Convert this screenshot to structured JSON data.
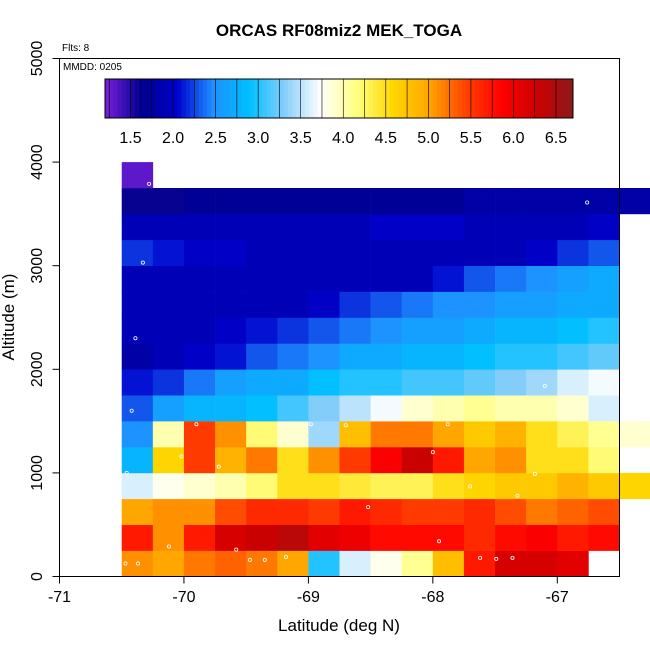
{
  "chart_data": {
    "type": "heatmap",
    "title": "ORCAS RF08miz2 MEK_TOGA",
    "flights_label": "Flts: 8",
    "date_label": "MMDD: 0205",
    "xlabel": "Latitude (deg N)",
    "ylabel": "Altitude (m)",
    "xlim": [
      -71.0,
      -66.5
    ],
    "ylim": [
      0,
      5000
    ],
    "xticks": [
      -71,
      -70,
      -69,
      -68,
      -67
    ],
    "xtick_labels": [
      "-71",
      "-70",
      "-69",
      "-68",
      "-67"
    ],
    "yticks": [
      0,
      1000,
      2000,
      3000,
      4000,
      5000
    ],
    "ytick_labels": [
      "0",
      "1000",
      "2000",
      "3000",
      "4000",
      "5000"
    ],
    "colorbar": {
      "min": 1.2,
      "max": 6.7,
      "ticks": [
        1.5,
        2.0,
        2.5,
        3.0,
        3.5,
        4.0,
        4.5,
        5.0,
        5.5,
        6.0,
        6.5
      ],
      "tick_labels": [
        "1.5",
        "2.0",
        "2.5",
        "3.0",
        "3.5",
        "4.0",
        "4.5",
        "5.0",
        "5.5",
        "6.0",
        "6.5"
      ],
      "palette": [
        "#7b1fe0",
        "#00008b",
        "#0000cd",
        "#1e90ff",
        "#00bfff",
        "#87cefa",
        "#ffffff",
        "#ffff80",
        "#ffd700",
        "#ffa500",
        "#ff4500",
        "#ff0000",
        "#cd0000",
        "#8b1a1a"
      ]
    },
    "cell_size": {
      "lat_deg": 0.25,
      "alt_m": 250
    },
    "rows": [
      {
        "alt": 125,
        "lat_start": -70.5,
        "values": [
          5.1,
          5.0,
          5.2,
          5.3,
          5.2,
          5.0,
          3.0,
          3.6,
          3.8,
          4.1,
          4.8,
          5.7,
          6.2,
          6.2,
          6.1,
          null,
          null,
          null
        ]
      },
      {
        "alt": 375,
        "lat_start": -70.5,
        "values": [
          5.7,
          5.1,
          5.7,
          6.2,
          6.3,
          6.4,
          6.1,
          6.0,
          5.8,
          5.8,
          5.8,
          5.6,
          5.8,
          5.9,
          5.7,
          5.8,
          null,
          null
        ]
      },
      {
        "alt": 625,
        "lat_start": -70.5,
        "values": [
          5.0,
          5.1,
          5.1,
          5.4,
          5.6,
          5.6,
          5.5,
          5.7,
          5.6,
          5.5,
          5.5,
          5.6,
          5.4,
          5.2,
          5.3,
          5.4,
          null,
          null
        ]
      },
      {
        "alt": 875,
        "lat_start": -70.5,
        "values": [
          3.6,
          3.8,
          3.9,
          4.0,
          4.2,
          4.5,
          4.5,
          4.4,
          4.3,
          4.3,
          4.5,
          4.6,
          4.7,
          4.7,
          4.9,
          4.7,
          4.6,
          null
        ]
      },
      {
        "alt": 1125,
        "lat_start": -70.5,
        "values": [
          2.8,
          4.6,
          5.5,
          4.9,
          5.2,
          4.5,
          5.1,
          5.5,
          5.9,
          6.3,
          5.7,
          5.0,
          5.1,
          4.5,
          4.5,
          4.2,
          null,
          null
        ]
      },
      {
        "alt": 1375,
        "lat_start": -70.5,
        "values": [
          2.5,
          4.0,
          5.5,
          5.1,
          4.2,
          3.9,
          3.4,
          4.8,
          5.2,
          5.2,
          5.0,
          4.7,
          4.9,
          4.5,
          4.3,
          4.1,
          3.9,
          null
        ]
      },
      {
        "alt": 1625,
        "lat_start": -70.5,
        "values": [
          2.3,
          2.6,
          2.8,
          2.8,
          2.9,
          3.1,
          3.3,
          3.5,
          3.7,
          3.9,
          4.0,
          4.1,
          4.0,
          4.0,
          3.9,
          3.6,
          null,
          null
        ]
      },
      {
        "alt": 1875,
        "lat_start": -70.5,
        "values": [
          2.1,
          2.2,
          2.4,
          2.6,
          2.7,
          2.7,
          2.9,
          3.0,
          3.0,
          3.1,
          3.1,
          3.2,
          3.3,
          3.4,
          3.6,
          3.7,
          null,
          null
        ]
      },
      {
        "alt": 2125,
        "lat_start": -70.5,
        "values": [
          1.8,
          1.9,
          2.0,
          2.1,
          2.3,
          2.4,
          2.5,
          2.7,
          2.7,
          2.8,
          2.8,
          2.9,
          3.0,
          3.0,
          3.1,
          3.2,
          null,
          null
        ]
      },
      {
        "alt": 2375,
        "lat_start": -70.5,
        "values": [
          1.9,
          1.9,
          1.9,
          2.0,
          2.1,
          2.2,
          2.3,
          2.4,
          2.5,
          2.6,
          2.6,
          2.7,
          2.8,
          2.8,
          2.9,
          3.0,
          null,
          null
        ]
      },
      {
        "alt": 2625,
        "lat_start": -70.5,
        "values": [
          1.9,
          1.9,
          1.9,
          1.9,
          1.9,
          1.9,
          2.0,
          2.2,
          2.3,
          2.4,
          2.5,
          2.5,
          2.6,
          2.6,
          2.7,
          2.7,
          null,
          null
        ]
      },
      {
        "alt": 2875,
        "lat_start": -70.5,
        "values": [
          1.9,
          1.9,
          1.9,
          1.9,
          1.9,
          1.9,
          1.9,
          1.9,
          1.9,
          1.9,
          2.1,
          2.3,
          2.4,
          2.5,
          2.6,
          2.7,
          null,
          null
        ]
      },
      {
        "alt": 3125,
        "lat_start": -70.5,
        "values": [
          2.2,
          2.1,
          2.0,
          2.0,
          1.9,
          1.9,
          1.9,
          1.9,
          1.9,
          1.9,
          1.9,
          1.9,
          1.9,
          2.0,
          2.2,
          2.3,
          null,
          null
        ]
      },
      {
        "alt": 3375,
        "lat_start": -70.5,
        "values": [
          1.9,
          1.9,
          1.9,
          1.9,
          1.9,
          1.9,
          1.9,
          1.9,
          2.0,
          2.0,
          2.0,
          1.9,
          1.9,
          1.9,
          1.9,
          2.0,
          null,
          null
        ]
      },
      {
        "alt": 3625,
        "lat_start": -70.5,
        "values": [
          1.6,
          1.6,
          1.7,
          1.7,
          1.7,
          1.7,
          1.7,
          1.7,
          1.7,
          1.7,
          1.7,
          1.8,
          1.8,
          1.8,
          1.8,
          1.8,
          1.8,
          1.8
        ]
      },
      {
        "alt": 3875,
        "lat_start": -70.5,
        "values": [
          1.3,
          null,
          null,
          null,
          null,
          null,
          null,
          null,
          null,
          null,
          null,
          null,
          null,
          null,
          null,
          null,
          null,
          null
        ]
      }
    ],
    "points": [
      [
        -70.47,
        125
      ],
      [
        -70.37,
        125
      ],
      [
        -70.12,
        290
      ],
      [
        -69.58,
        260
      ],
      [
        -69.47,
        160
      ],
      [
        -69.35,
        160
      ],
      [
        -69.18,
        190
      ],
      [
        -68.52,
        670
      ],
      [
        -68.42,
        160
      ],
      [
        -68.27,
        160
      ],
      [
        -67.95,
        340
      ],
      [
        -67.62,
        180
      ],
      [
        -67.49,
        170
      ],
      [
        -67.36,
        180
      ],
      [
        -70.52,
        440
      ],
      [
        -70.46,
        1000
      ],
      [
        -70.02,
        1160
      ],
      [
        -69.9,
        1470
      ],
      [
        -69.72,
        1060
      ],
      [
        -68.98,
        1470
      ],
      [
        -68.7,
        1460
      ],
      [
        -68.0,
        1200
      ],
      [
        -67.88,
        1470
      ],
      [
        -67.7,
        870
      ],
      [
        -67.32,
        780
      ],
      [
        -67.18,
        990
      ],
      [
        -70.42,
        1600
      ],
      [
        -67.1,
        1840
      ],
      [
        -70.39,
        2300
      ],
      [
        -70.33,
        3030
      ],
      [
        -70.28,
        3790
      ],
      [
        -66.76,
        3610
      ]
    ],
    "point_color": "#ffffff"
  }
}
